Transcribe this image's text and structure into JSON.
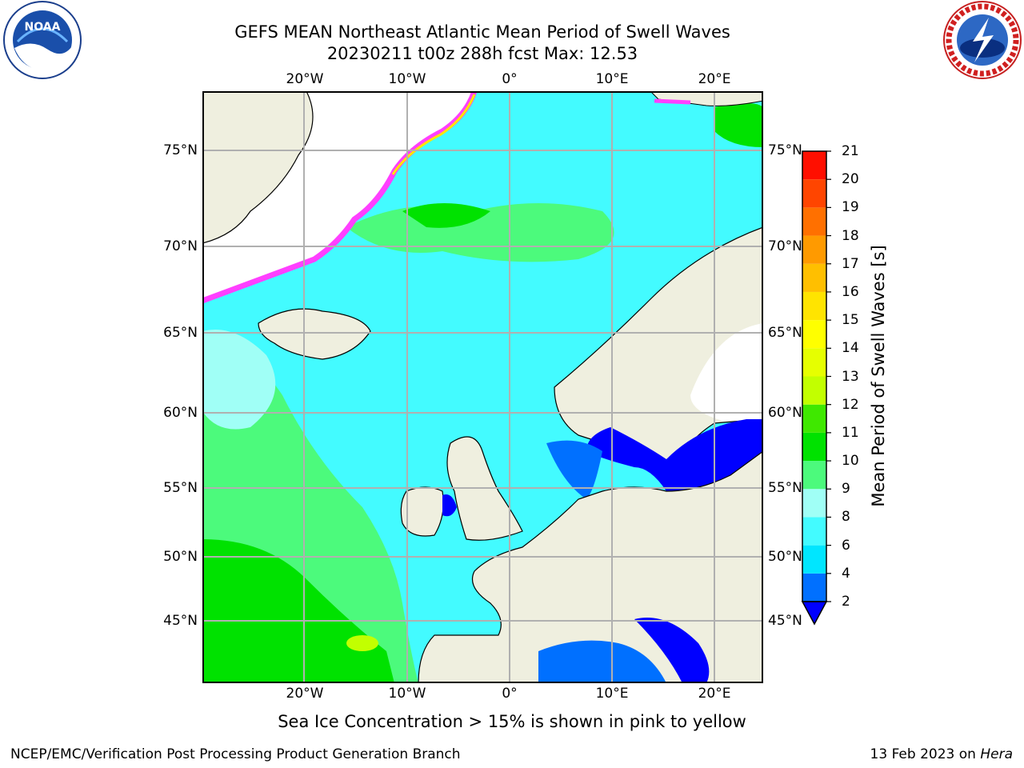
{
  "header": {
    "title_line1": "GEFS MEAN Northeast Atlantic Mean Period of Swell Waves",
    "title_line2": "20230211 t00z 288h fcst   Max: 12.53"
  },
  "logos": {
    "left": {
      "icon": "noaa-logo",
      "text": "NOAA"
    },
    "right": {
      "icon": "nws-logo",
      "text": "NATIONAL WEATHER SERVICE"
    }
  },
  "map": {
    "lon_labels": [
      "20°W",
      "10°W",
      "0°",
      "10°E",
      "20°E"
    ],
    "lat_labels": [
      "75°N",
      "70°N",
      "65°N",
      "60°N",
      "55°N",
      "50°N",
      "45°N"
    ],
    "colors": {
      "land": "#efefdf",
      "ice": "#ff3fff",
      "grid": "#b0b0b0"
    }
  },
  "colorbar": {
    "title": "Mean Period of Swell Waves [s]",
    "ticks": [
      "2",
      "4",
      "6",
      "8",
      "9",
      "10",
      "11",
      "12",
      "13",
      "14",
      "15",
      "16",
      "17",
      "18",
      "19",
      "20",
      "21"
    ],
    "colors": [
      "#0070ff",
      "#00e6ff",
      "#43fbff",
      "#a0fff6",
      "#4cfa7c",
      "#00e200",
      "#3fe800",
      "#c2ff00",
      "#e6ff00",
      "#ffff00",
      "#ffe400",
      "#ffbf00",
      "#ff9a00",
      "#ff7000",
      "#ff4500",
      "#ff0f00"
    ],
    "under_color": "#0000ff"
  },
  "footer": {
    "sea_ice_note": "Sea Ice Concentration > 15% is shown in pink to yellow",
    "left": "NCEP/EMC/Verification Post Processing Product Generation Branch",
    "right_date": "13 Feb 2023 on ",
    "right_machine": "Hera"
  }
}
